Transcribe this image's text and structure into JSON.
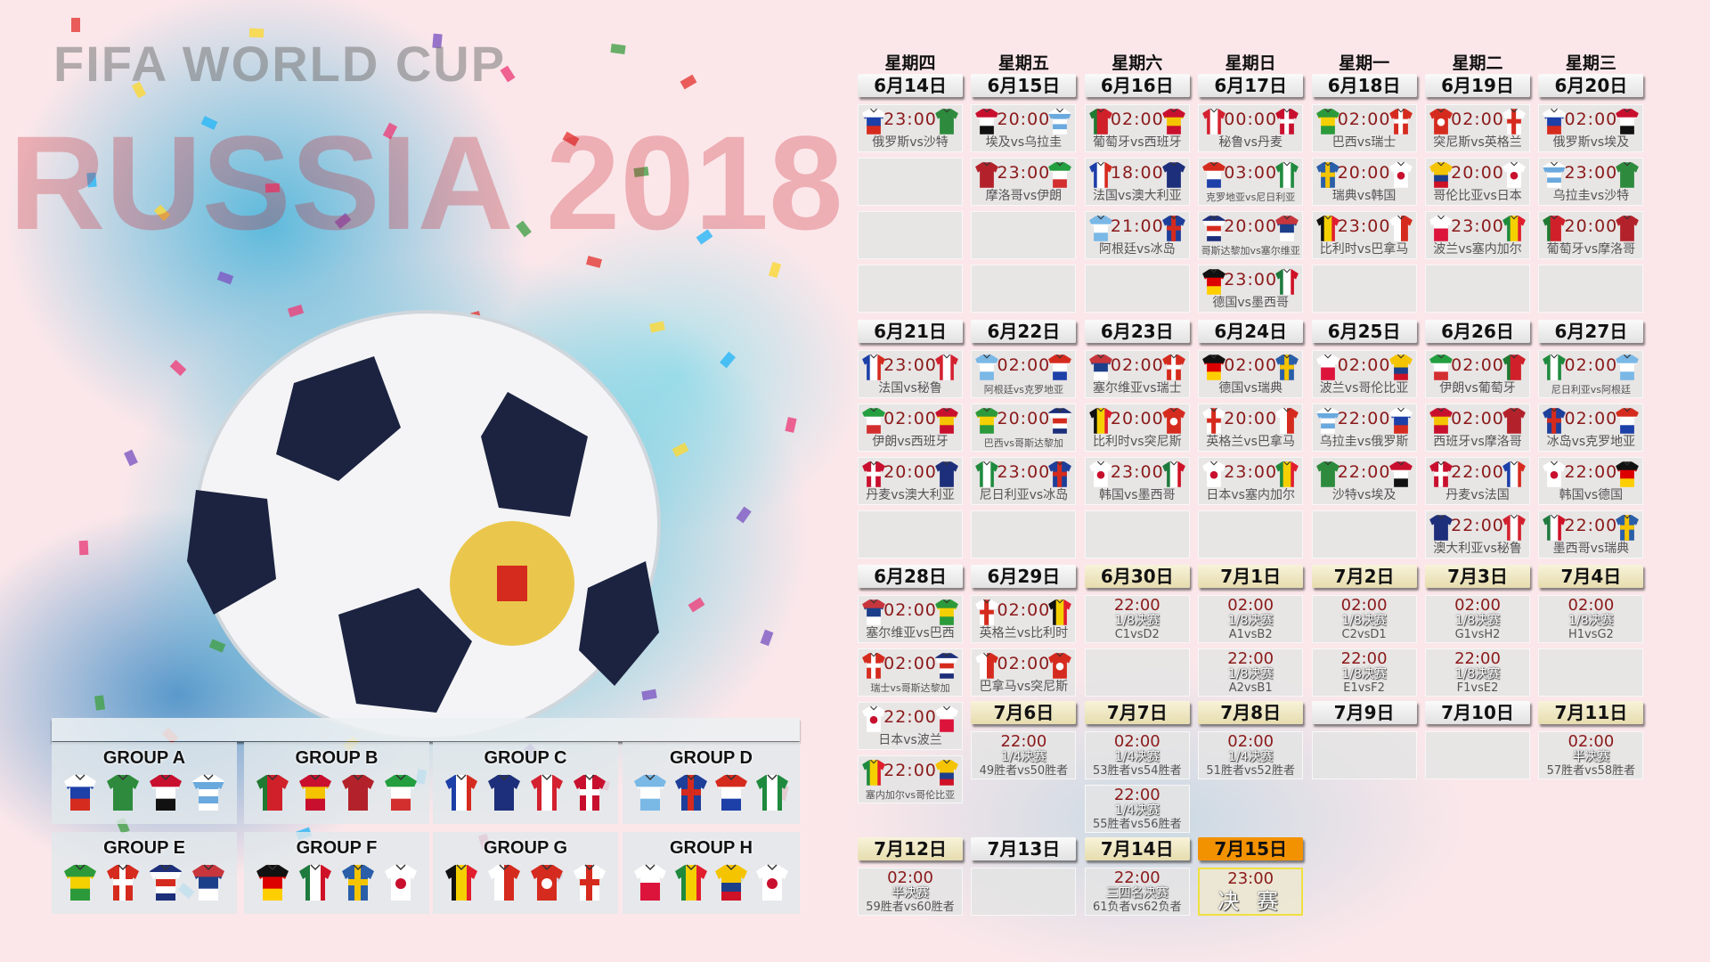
{
  "watermark": {
    "line1": "FIFA WORLD CUP",
    "line2": "RUSSIA 2018"
  },
  "weekdays": [
    "星期四",
    "星期五",
    "星期六",
    "星期日",
    "星期一",
    "星期二",
    "星期三"
  ],
  "colors": {
    "time": "#8b1a1a",
    "final_header": "#f39200",
    "final_border": "#f0e040",
    "knockout_header": "#ece3bd"
  },
  "weeks": [
    [
      {
        "date": "6月14日",
        "matches": [
          {
            "time": "23:00",
            "label": "俄罗斯vs沙特",
            "home": "russia",
            "away": "saudi"
          }
        ]
      },
      {
        "date": "6月15日",
        "matches": [
          {
            "time": "20:00",
            "label": "埃及vs乌拉圭",
            "home": "egypt",
            "away": "uruguay"
          },
          {
            "time": "23:00",
            "label": "摩洛哥vs伊朗",
            "home": "morocco",
            "away": "iran"
          }
        ]
      },
      {
        "date": "6月16日",
        "matches": [
          {
            "time": "02:00",
            "label": "葡萄牙vs西班牙",
            "home": "portugal",
            "away": "spain"
          },
          {
            "time": "18:00",
            "label": "法国vs澳大利亚",
            "home": "france",
            "away": "australia"
          },
          {
            "time": "21:00",
            "label": "阿根廷vs冰岛",
            "home": "argentina",
            "away": "iceland"
          }
        ]
      },
      {
        "date": "6月17日",
        "matches": [
          {
            "time": "00:00",
            "label": "秘鲁vs丹麦",
            "home": "peru",
            "away": "denmark"
          },
          {
            "time": "03:00",
            "label": "克罗地亚vs尼日利亚",
            "home": "croatia",
            "away": "nigeria"
          },
          {
            "time": "20:00",
            "label": "哥斯达黎加vs塞尔维亚",
            "home": "costarica",
            "away": "serbia"
          },
          {
            "time": "23:00",
            "label": "德国vs墨西哥",
            "home": "germany",
            "away": "mexico"
          }
        ]
      },
      {
        "date": "6月18日",
        "matches": [
          {
            "time": "02:00",
            "label": "巴西vs瑞士",
            "home": "brazil",
            "away": "switzerland"
          },
          {
            "time": "20:00",
            "label": "瑞典vs韩国",
            "home": "sweden",
            "away": "korea"
          },
          {
            "time": "23:00",
            "label": "比利时vs巴拿马",
            "home": "belgium",
            "away": "panama"
          }
        ]
      },
      {
        "date": "6月19日",
        "matches": [
          {
            "time": "02:00",
            "label": "突尼斯vs英格兰",
            "home": "tunisia",
            "away": "england"
          },
          {
            "time": "20:00",
            "label": "哥伦比亚vs日本",
            "home": "colombia",
            "away": "japan"
          },
          {
            "time": "23:00",
            "label": "波兰vs塞内加尔",
            "home": "poland",
            "away": "senegal"
          }
        ]
      },
      {
        "date": "6月20日",
        "matches": [
          {
            "time": "02:00",
            "label": "俄罗斯vs埃及",
            "home": "russia",
            "away": "egypt"
          },
          {
            "time": "23:00",
            "label": "乌拉圭vs沙特",
            "home": "uruguay",
            "away": "saudi"
          },
          {
            "time": "20:00",
            "label": "葡萄牙vs摩洛哥",
            "home": "portugal",
            "away": "morocco"
          }
        ]
      }
    ],
    [
      {
        "date": "6月21日",
        "matches": [
          {
            "time": "23:00",
            "label": "法国vs秘鲁",
            "home": "france",
            "away": "peru"
          },
          {
            "time": "02:00",
            "label": "伊朗vs西班牙",
            "home": "iran",
            "away": "spain"
          },
          {
            "time": "20:00",
            "label": "丹麦vs澳大利亚",
            "home": "denmark",
            "away": "australia"
          }
        ]
      },
      {
        "date": "6月22日",
        "matches": [
          {
            "time": "02:00",
            "label": "阿根廷vs克罗地亚",
            "home": "argentina",
            "away": "croatia"
          },
          {
            "time": "20:00",
            "label": "巴西vs哥斯达黎加",
            "home": "brazil",
            "away": "costarica"
          },
          {
            "time": "23:00",
            "label": "尼日利亚vs冰岛",
            "home": "nigeria",
            "away": "iceland"
          }
        ]
      },
      {
        "date": "6月23日",
        "matches": [
          {
            "time": "02:00",
            "label": "塞尔维亚vs瑞士",
            "home": "serbia",
            "away": "switzerland"
          },
          {
            "time": "20:00",
            "label": "比利时vs突尼斯",
            "home": "belgium",
            "away": "tunisia"
          },
          {
            "time": "23:00",
            "label": "韩国vs墨西哥",
            "home": "korea",
            "away": "mexico"
          }
        ]
      },
      {
        "date": "6月24日",
        "matches": [
          {
            "time": "02:00",
            "label": "德国vs瑞典",
            "home": "germany",
            "away": "sweden"
          },
          {
            "time": "20:00",
            "label": "英格兰vs巴拿马",
            "home": "england",
            "away": "panama"
          },
          {
            "time": "23:00",
            "label": "日本vs塞内加尔",
            "home": "japan",
            "away": "senegal"
          }
        ]
      },
      {
        "date": "6月25日",
        "matches": [
          {
            "time": "02:00",
            "label": "波兰vs哥伦比亚",
            "home": "poland",
            "away": "colombia"
          },
          {
            "time": "22:00",
            "label": "乌拉圭vs俄罗斯",
            "home": "uruguay",
            "away": "russia"
          },
          {
            "time": "22:00",
            "label": "沙特vs埃及",
            "home": "saudi",
            "away": "egypt"
          }
        ]
      },
      {
        "date": "6月26日",
        "matches": [
          {
            "time": "02:00",
            "label": "伊朗vs葡萄牙",
            "home": "iran",
            "away": "portugal"
          },
          {
            "time": "02:00",
            "label": "西班牙vs摩洛哥",
            "home": "spain",
            "away": "morocco"
          },
          {
            "time": "22:00",
            "label": "丹麦vs法国",
            "home": "denmark",
            "away": "france"
          },
          {
            "time": "22:00",
            "label": "澳大利亚vs秘鲁",
            "home": "australia",
            "away": "peru"
          }
        ]
      },
      {
        "date": "6月27日",
        "matches": [
          {
            "time": "02:00",
            "label": "尼日利亚vs阿根廷",
            "home": "nigeria",
            "away": "argentina"
          },
          {
            "time": "02:00",
            "label": "冰岛vs克罗地亚",
            "home": "iceland",
            "away": "croatia"
          },
          {
            "time": "22:00",
            "label": "韩国vs德国",
            "home": "korea",
            "away": "germany"
          },
          {
            "time": "22:00",
            "label": "墨西哥vs瑞典",
            "home": "mexico",
            "away": "sweden"
          }
        ]
      }
    ],
    [
      {
        "date": "6月28日",
        "matches": [
          {
            "time": "02:00",
            "label": "塞尔维亚vs巴西",
            "home": "serbia",
            "away": "brazil"
          },
          {
            "time": "02:00",
            "label": "瑞士vs哥斯达黎加",
            "home": "switzerland",
            "away": "costarica"
          },
          {
            "time": "22:00",
            "label": "日本vs波兰",
            "home": "japan",
            "away": "poland"
          },
          {
            "time": "22:00",
            "label": "塞内加尔vs哥伦比亚",
            "home": "senegal",
            "away": "colombia"
          }
        ]
      },
      {
        "date": "6月29日",
        "matches": [
          {
            "time": "02:00",
            "label": "英格兰vs比利时",
            "home": "england",
            "away": "belgium"
          },
          {
            "time": "02:00",
            "label": "巴拿马vs突尼斯",
            "home": "panama",
            "away": "tunisia"
          }
        ]
      },
      {
        "date": "6月30日",
        "knockout": true,
        "matches": [
          {
            "time": "22:00",
            "stage": "1/8决赛",
            "label": "C1vsD2"
          }
        ]
      },
      {
        "date": "7月1日",
        "knockout": true,
        "matches": [
          {
            "time": "02:00",
            "stage": "1/8决赛",
            "label": "A1vsB2"
          },
          {
            "time": "22:00",
            "stage": "1/8决赛",
            "label": "A2vsB1"
          }
        ]
      },
      {
        "date": "7月2日",
        "knockout": true,
        "matches": [
          {
            "time": "02:00",
            "stage": "1/8决赛",
            "label": "C2vsD1"
          },
          {
            "time": "22:00",
            "stage": "1/8决赛",
            "label": "E1vsF2"
          }
        ]
      },
      {
        "date": "7月3日",
        "knockout": true,
        "matches": [
          {
            "time": "02:00",
            "stage": "1/8决赛",
            "label": "G1vsH2"
          },
          {
            "time": "22:00",
            "stage": "1/8决赛",
            "label": "F1vsE2"
          }
        ]
      },
      {
        "date": "7月4日",
        "knockout": true,
        "matches": [
          {
            "time": "02:00",
            "stage": "1/8决赛",
            "label": "H1vsG2"
          }
        ]
      }
    ],
    [
      null,
      {
        "date": "7月6日",
        "knockout": true,
        "matches": [
          {
            "time": "22:00",
            "stage": "1/4决赛",
            "label": "49胜者vs50胜者"
          }
        ]
      },
      {
        "date": "7月7日",
        "knockout": true,
        "matches": [
          {
            "time": "02:00",
            "stage": "1/4决赛",
            "label": "53胜者vs54胜者"
          },
          {
            "time": "22:00",
            "stage": "1/4决赛",
            "label": "55胜者vs56胜者"
          }
        ]
      },
      {
        "date": "7月8日",
        "knockout": true,
        "matches": [
          {
            "time": "02:00",
            "stage": "1/4决赛",
            "label": "51胜者vs52胜者"
          }
        ]
      },
      {
        "date": "7月9日",
        "matches": []
      },
      {
        "date": "7月10日",
        "matches": []
      },
      {
        "date": "7月11日",
        "knockout": true,
        "matches": [
          {
            "time": "02:00",
            "stage": "半决赛",
            "label": "57胜者vs58胜者"
          }
        ]
      }
    ],
    [
      {
        "date": "7月12日",
        "knockout": true,
        "matches": [
          {
            "time": "02:00",
            "stage": "半决赛",
            "label": "59胜者vs60胜者"
          }
        ]
      },
      {
        "date": "7月13日",
        "matches": []
      },
      {
        "date": "7月14日",
        "knockout": true,
        "matches": [
          {
            "time": "22:00",
            "stage": "三四名决赛",
            "label": "61负者vs62负者"
          }
        ]
      },
      {
        "date": "7月15日",
        "knockout": true,
        "final": true,
        "matches": [
          {
            "time": "23:00",
            "stage": "决 赛"
          }
        ]
      }
    ]
  ],
  "groups": [
    {
      "name": "GROUP A",
      "teams": [
        "russia",
        "saudi",
        "egypt",
        "uruguay"
      ]
    },
    {
      "name": "GROUP B",
      "teams": [
        "portugal",
        "spain",
        "morocco",
        "iran"
      ]
    },
    {
      "name": "GROUP C",
      "teams": [
        "france",
        "australia",
        "peru",
        "denmark"
      ]
    },
    {
      "name": "GROUP D",
      "teams": [
        "argentina",
        "iceland",
        "croatia",
        "nigeria"
      ]
    },
    {
      "name": "GROUP E",
      "teams": [
        "brazil",
        "switzerland",
        "costarica",
        "serbia"
      ]
    },
    {
      "name": "GROUP F",
      "teams": [
        "germany",
        "mexico",
        "sweden",
        "korea"
      ]
    },
    {
      "name": "GROUP G",
      "teams": [
        "belgium",
        "panama",
        "tunisia",
        "england"
      ]
    },
    {
      "name": "GROUP H",
      "teams": [
        "poland",
        "senegal",
        "colombia",
        "japan"
      ]
    }
  ],
  "jerseys": {
    "russia": {
      "type": "h",
      "colors": [
        "#ffffff",
        "#1c3fa8",
        "#d52b1e"
      ]
    },
    "saudi": {
      "type": "h",
      "colors": [
        "#2e8b3d"
      ]
    },
    "egypt": {
      "type": "h",
      "colors": [
        "#c8102e",
        "#ffffff",
        "#111111"
      ]
    },
    "uruguay": {
      "type": "h",
      "colors": [
        "#ffffff",
        "#6aa9dd",
        "#ffffff",
        "#6aa9dd",
        "#ffffff"
      ]
    },
    "portugal": {
      "type": "v",
      "colors": [
        "#1f7a32",
        "#d0202a",
        "#d0202a"
      ]
    },
    "spain": {
      "type": "h",
      "colors": [
        "#c8102e",
        "#f5c400",
        "#c8102e"
      ]
    },
    "morocco": {
      "type": "h",
      "colors": [
        "#b3222a"
      ]
    },
    "iran": {
      "type": "h",
      "colors": [
        "#239f40",
        "#ffffff",
        "#d32f2f"
      ]
    },
    "france": {
      "type": "v",
      "colors": [
        "#1c3fa8",
        "#ffffff",
        "#d52b1e"
      ]
    },
    "australia": {
      "type": "h",
      "colors": [
        "#1d2f7a"
      ]
    },
    "peru": {
      "type": "v",
      "colors": [
        "#d3212f",
        "#ffffff",
        "#d3212f"
      ]
    },
    "denmark": {
      "type": "cross",
      "colors": [
        "#c8102e",
        "#ffffff"
      ]
    },
    "argentina": {
      "type": "h",
      "colors": [
        "#7ab8e6",
        "#ffffff",
        "#7ab8e6"
      ]
    },
    "iceland": {
      "type": "cross",
      "colors": [
        "#1d3f9a",
        "#d52b1e"
      ]
    },
    "croatia": {
      "type": "h",
      "colors": [
        "#d52b1e",
        "#ffffff",
        "#1c3fa8"
      ]
    },
    "nigeria": {
      "type": "v",
      "colors": [
        "#1f8a3e",
        "#ffffff",
        "#1f8a3e"
      ]
    },
    "brazil": {
      "type": "h",
      "colors": [
        "#2c9a3a",
        "#f5d000",
        "#2c9a3a"
      ]
    },
    "switzerland": {
      "type": "cross",
      "colors": [
        "#d52b1e",
        "#ffffff"
      ]
    },
    "costarica": {
      "type": "h",
      "colors": [
        "#1d2f7a",
        "#ffffff",
        "#d52b1e",
        "#ffffff",
        "#1d2f7a"
      ]
    },
    "serbia": {
      "type": "h",
      "colors": [
        "#c6363c",
        "#1c3f8a",
        "#ffffff"
      ]
    },
    "germany": {
      "type": "h",
      "colors": [
        "#111111",
        "#dd0000",
        "#ffce00"
      ]
    },
    "mexico": {
      "type": "v",
      "colors": [
        "#1f7a3e",
        "#ffffff",
        "#ce1126"
      ]
    },
    "sweden": {
      "type": "cross",
      "colors": [
        "#2a5ea8",
        "#f5c400"
      ]
    },
    "korea": {
      "type": "dot",
      "colors": [
        "#ffffff",
        "#c8102e"
      ]
    },
    "belgium": {
      "type": "v",
      "colors": [
        "#111111",
        "#f5d000",
        "#e01e2e"
      ]
    },
    "panama": {
      "type": "v",
      "colors": [
        "#ffffff",
        "#d52b1e"
      ]
    },
    "tunisia": {
      "type": "dot",
      "colors": [
        "#d52b1e",
        "#ffffff"
      ]
    },
    "england": {
      "type": "cross",
      "colors": [
        "#ffffff",
        "#d52b1e"
      ]
    },
    "poland": {
      "type": "h",
      "colors": [
        "#ffffff",
        "#dc143c"
      ]
    },
    "senegal": {
      "type": "v",
      "colors": [
        "#1f8a3e",
        "#f5d000",
        "#e01e2e"
      ]
    },
    "colombia": {
      "type": "h",
      "colors": [
        "#f5c400",
        "#f5c400",
        "#1c3f8a",
        "#ce1126"
      ]
    },
    "japan": {
      "type": "dot",
      "colors": [
        "#ffffff",
        "#c8102e"
      ]
    }
  }
}
